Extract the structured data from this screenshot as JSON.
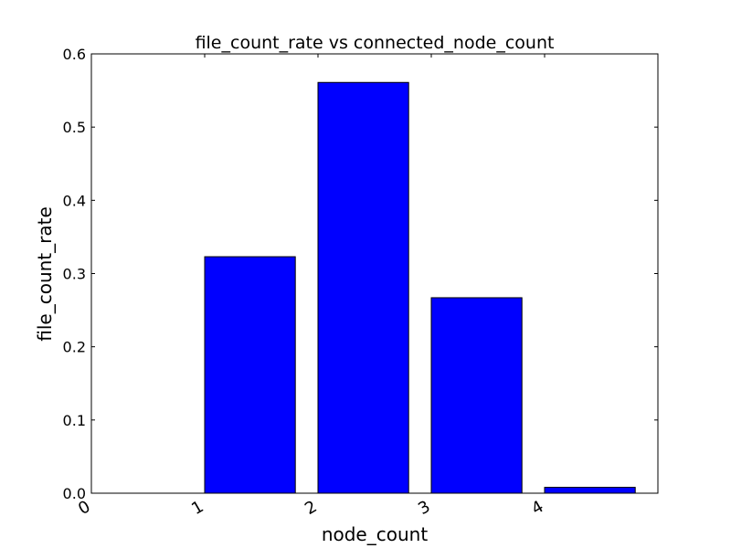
{
  "chart_data": {
    "type": "bar",
    "title": "file_count_rate vs connected_node_count",
    "xlabel": "node_count",
    "ylabel": "file_count_rate",
    "categories": [
      "0",
      "1",
      "2",
      "3",
      "4"
    ],
    "values": [
      0.0,
      0.323,
      0.561,
      0.267,
      0.008
    ],
    "ylim": [
      0,
      0.6
    ],
    "yticks": [
      "0.0",
      "0.1",
      "0.2",
      "0.3",
      "0.4",
      "0.5",
      "0.6"
    ],
    "xtick_rotation": "30 degrees",
    "bar_color": "#0000ff",
    "edge_color": "#000000",
    "grid": false,
    "legend": "none"
  }
}
